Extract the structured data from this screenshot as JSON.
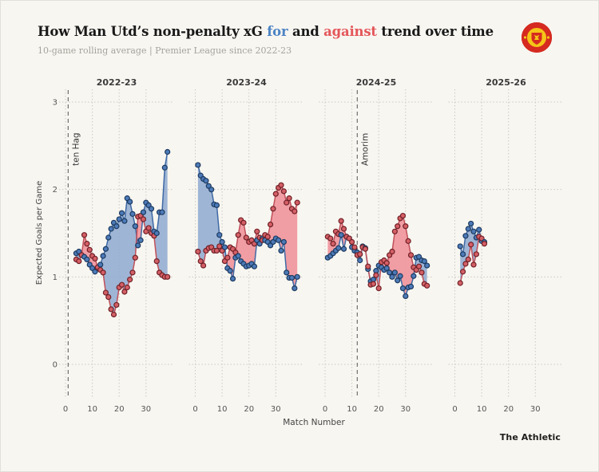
{
  "header": {
    "title": {
      "prefix": "How Man Utd’s non-penalty xG ",
      "for_word": "for",
      "mid": " and ",
      "against_word": "against",
      "suffix": " trend over time"
    },
    "subtitle": "10-game rolling average | Premier League since 2022-23"
  },
  "footer": {
    "credit": "The Athletic"
  },
  "chart_data": {
    "type": "line",
    "title": "How Man Utd's non-penalty xG for and against trend over time",
    "subtitle": "10-game rolling average | Premier League since 2022-23",
    "xlabel": "Match Number",
    "ylabel": "Expected Goals per Game",
    "ylim": [
      0,
      3.15
    ],
    "yticks": [
      0,
      1,
      2,
      3
    ],
    "xticks": [
      0,
      10,
      20,
      30
    ],
    "grid": true,
    "legend": "encoded in title colors",
    "series_names": {
      "for": "non-penalty xG for",
      "against": "non-penalty xG against"
    },
    "colors": {
      "for_line": "#3e69a4",
      "for_fill": "#8fa9d0",
      "for_dot": "#4d7ab8",
      "for_dot_edge": "#1c3a5f",
      "against_line": "#c05059",
      "against_fill": "#f0949b",
      "against_dot": "#d55f66",
      "against_dot_edge": "#6e2127",
      "grid": "#ccc9c0",
      "dashed_line": "#6f6f6f",
      "axis_text": "#555555",
      "title_for": "#4d84c4",
      "title_against": "#e4575a"
    },
    "annotations": [
      {
        "label": "ten Hag",
        "season_index": 0,
        "match": 1
      },
      {
        "label": "Amorim",
        "season_index": 2,
        "match": 12
      }
    ],
    "seasons": [
      {
        "label": "2022-23",
        "start_match": 4,
        "for": [
          1.27,
          1.29,
          1.25,
          1.23,
          1.2,
          1.14,
          1.1,
          1.06,
          1.1,
          1.14,
          1.24,
          1.32,
          1.45,
          1.55,
          1.62,
          1.58,
          1.66,
          1.73,
          1.64,
          1.9,
          1.86,
          1.72,
          1.58,
          1.36,
          1.42,
          1.74,
          1.85,
          1.82,
          1.78,
          1.52,
          1.5,
          1.74,
          1.74,
          2.25,
          2.43
        ],
        "against": [
          1.2,
          1.18,
          1.25,
          1.48,
          1.38,
          1.31,
          1.24,
          1.21,
          1.11,
          1.08,
          1.05,
          0.82,
          0.77,
          0.63,
          0.57,
          0.68,
          0.88,
          0.91,
          0.83,
          0.88,
          0.97,
          1.05,
          1.22,
          1.69,
          1.7,
          1.66,
          1.52,
          1.56,
          1.5,
          1.47,
          1.18,
          1.05,
          1.02,
          1.0,
          1.0
        ]
      },
      {
        "label": "2023-24",
        "start_match": 1,
        "for": [
          2.28,
          2.16,
          2.12,
          2.1,
          2.04,
          2.0,
          1.83,
          1.82,
          1.48,
          1.4,
          1.34,
          1.1,
          1.07,
          0.98,
          1.22,
          1.24,
          1.18,
          1.15,
          1.12,
          1.13,
          1.15,
          1.12,
          1.42,
          1.38,
          1.44,
          1.42,
          1.4,
          1.36,
          1.4,
          1.44,
          1.42,
          1.3,
          1.4,
          1.05,
          0.99,
          0.99,
          0.87,
          1.0
        ],
        "against": [
          1.29,
          1.18,
          1.13,
          1.3,
          1.33,
          1.34,
          1.3,
          1.3,
          1.35,
          1.3,
          1.18,
          1.22,
          1.34,
          1.32,
          1.28,
          1.48,
          1.65,
          1.62,
          1.45,
          1.4,
          1.42,
          1.38,
          1.52,
          1.45,
          1.42,
          1.48,
          1.46,
          1.6,
          1.78,
          1.95,
          2.02,
          2.05,
          1.98,
          1.85,
          1.9,
          1.78,
          1.75,
          1.85
        ]
      },
      {
        "label": "2024-25",
        "start_match": 1,
        "for": [
          1.22,
          1.24,
          1.27,
          1.3,
          1.33,
          1.48,
          1.32,
          1.46,
          1.44,
          1.34,
          1.3,
          1.28,
          1.19,
          1.35,
          1.33,
          1.09,
          0.95,
          0.97,
          1.07,
          1.13,
          1.11,
          1.08,
          1.1,
          1.05,
          1.0,
          1.05,
          0.96,
          1.01,
          0.87,
          0.78,
          0.88,
          0.89,
          1.01,
          1.22,
          1.23,
          1.19,
          1.18,
          1.13
        ],
        "against": [
          1.46,
          1.44,
          1.38,
          1.52,
          1.49,
          1.64,
          1.55,
          1.46,
          1.44,
          1.4,
          1.34,
          1.25,
          1.26,
          1.34,
          1.32,
          1.12,
          0.91,
          0.92,
          1.02,
          0.87,
          1.17,
          1.19,
          1.16,
          1.25,
          1.29,
          1.52,
          1.58,
          1.67,
          1.7,
          1.58,
          1.41,
          1.25,
          1.11,
          1.08,
          1.12,
          1.05,
          0.92,
          0.9
        ]
      },
      {
        "label": "2025-26",
        "start_match": 2,
        "for": [
          1.35,
          1.26,
          1.47,
          1.55,
          1.61,
          1.52,
          1.45,
          1.54,
          1.41,
          1.4
        ],
        "against": [
          0.93,
          1.06,
          1.15,
          1.2,
          1.37,
          1.14,
          1.26,
          1.46,
          1.44,
          1.38
        ]
      }
    ]
  }
}
